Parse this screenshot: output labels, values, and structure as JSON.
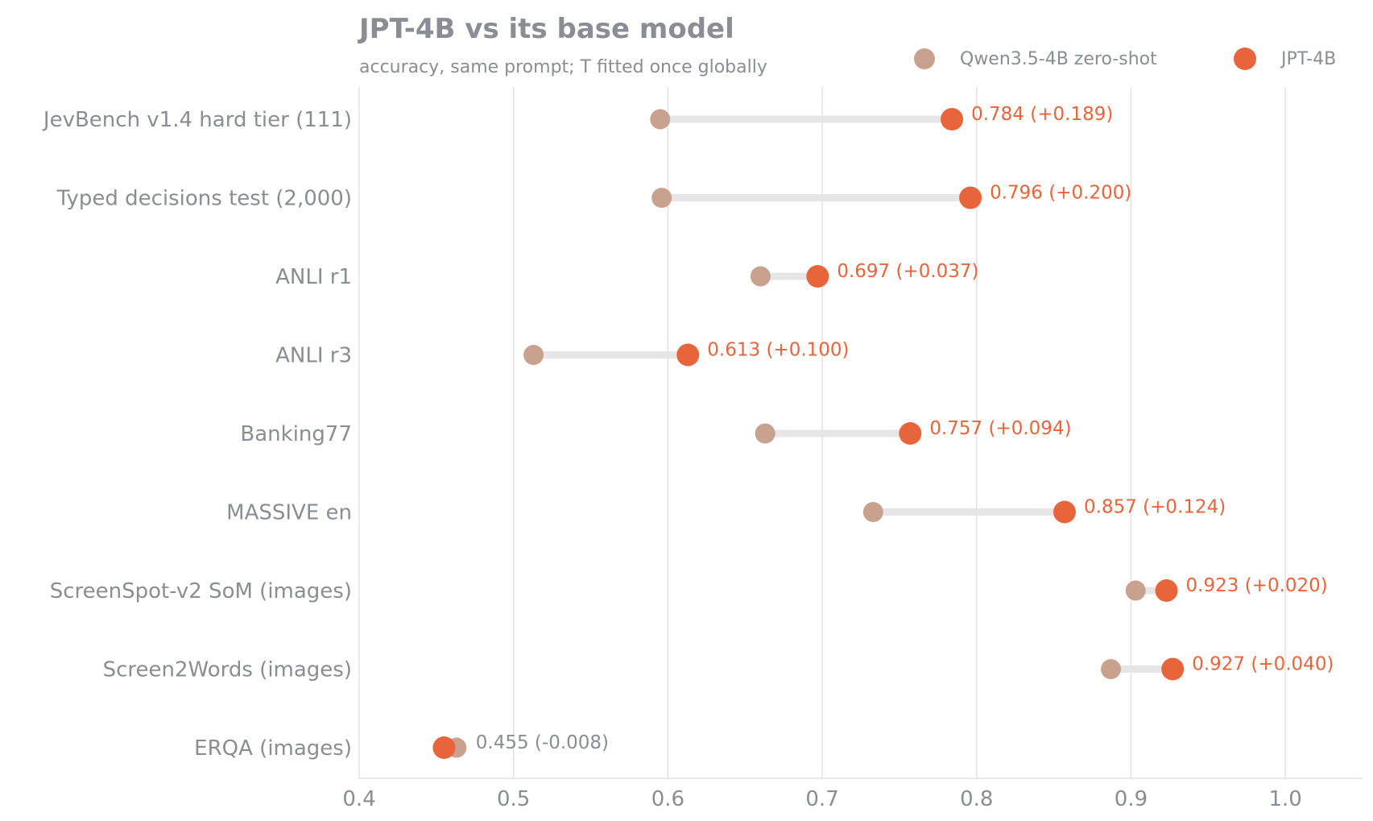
{
  "chart_data": {
    "type": "dumbbell",
    "title": "JPT-4B vs its base model",
    "subtitle": "accuracy, same prompt; T fitted once globally",
    "xlim": [
      0.4,
      1.05
    ],
    "xticks": [
      0.4,
      0.5,
      0.6,
      0.7,
      0.8,
      0.9,
      1.0
    ],
    "xtick_labels": [
      "0.4",
      "0.5",
      "0.6",
      "0.7",
      "0.8",
      "0.9",
      "1.0"
    ],
    "grid": "vertical",
    "legend_placement": "top-right",
    "categories": [
      "JevBench v1.4 hard tier (111)",
      "Typed decisions test (2,000)",
      "ANLI r1",
      "ANLI r3",
      "Banking77",
      "MASSIVE en",
      "ScreenSpot-v2 SoM (images)",
      "Screen2Words (images)",
      "ERQA (images)"
    ],
    "series": [
      {
        "name": "Qwen3.5-4B zero-shot",
        "color": "#c9a18f",
        "values": [
          0.595,
          0.596,
          0.66,
          0.513,
          0.663,
          0.733,
          0.903,
          0.887,
          0.463
        ]
      },
      {
        "name": "JPT-4B",
        "color": "#e8643b",
        "values": [
          0.784,
          0.796,
          0.697,
          0.613,
          0.757,
          0.857,
          0.923,
          0.927,
          0.455
        ]
      }
    ],
    "value_labels": [
      "0.784  (+0.189)",
      "0.796  (+0.200)",
      "0.697  (+0.037)",
      "0.613  (+0.100)",
      "0.757  (+0.094)",
      "0.857  (+0.124)",
      "0.923  (+0.020)",
      "0.927  (+0.040)",
      "0.455  (-0.008)"
    ],
    "value_label_colors": {
      "gain": "#e8643b",
      "loss": "#8a8d93"
    },
    "connector_color": "#e6e6e6",
    "grid_color": "#e3e3e3"
  }
}
